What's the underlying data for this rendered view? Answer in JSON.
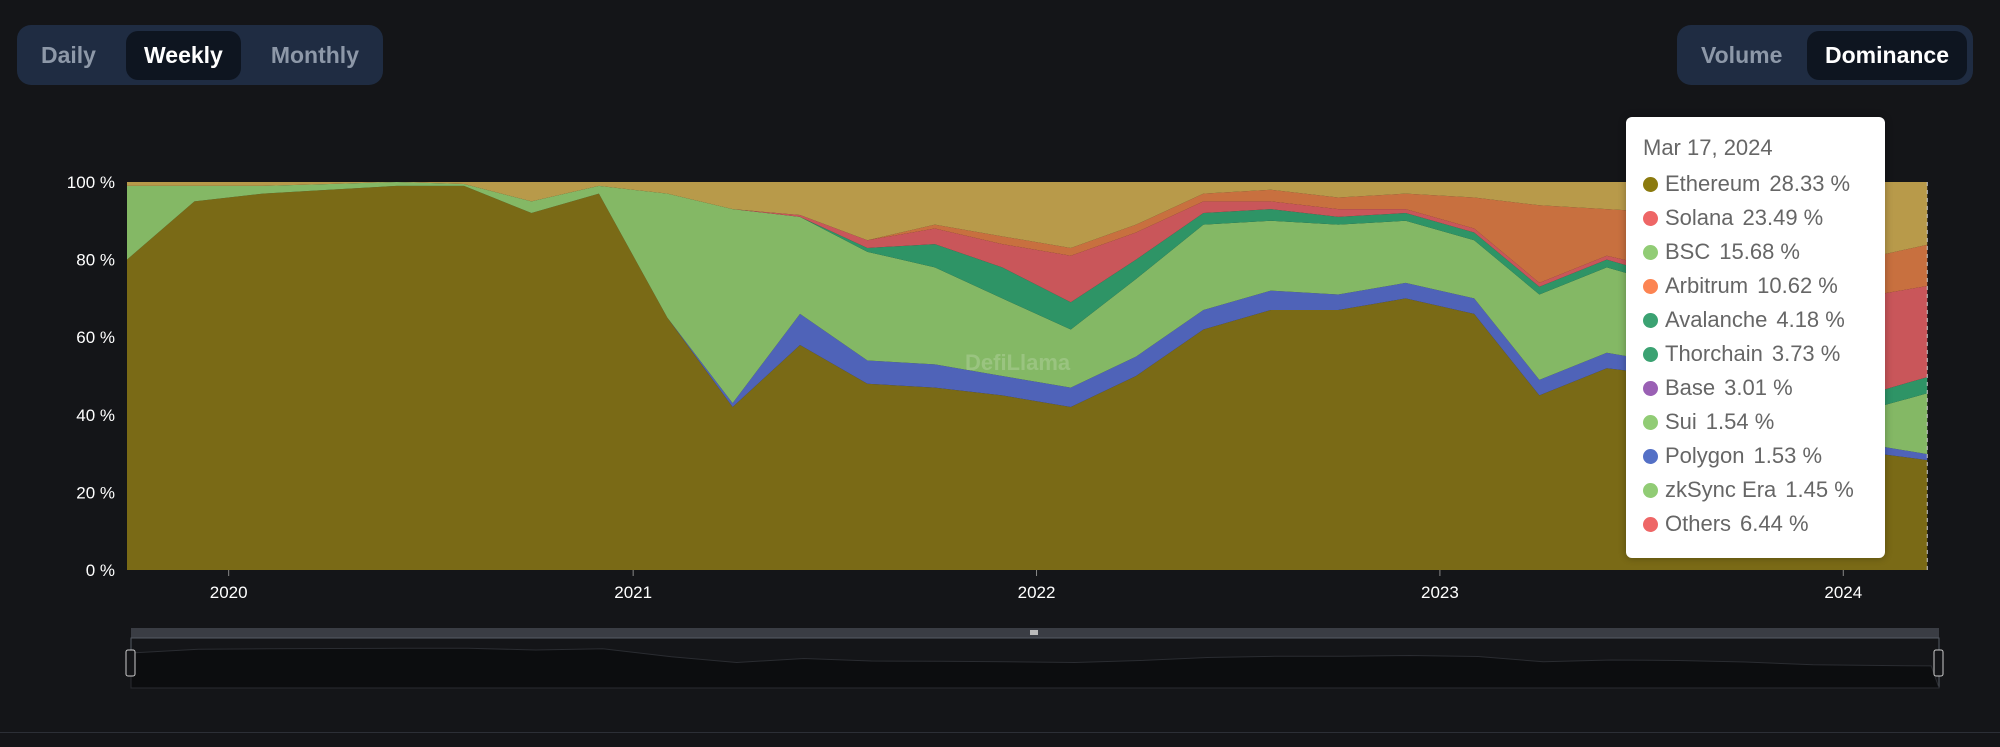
{
  "interval_toggle": {
    "options": [
      "Daily",
      "Weekly",
      "Monthly"
    ],
    "selected": "Weekly"
  },
  "mode_toggle": {
    "options": [
      "Volume",
      "Dominance"
    ],
    "selected": "Dominance"
  },
  "watermark": "DefiLlama",
  "tooltip": {
    "date": "Mar 17, 2024",
    "items": [
      {
        "name": "Ethereum",
        "value": "28.33 %",
        "color": "#8b7a0e"
      },
      {
        "name": "Solana",
        "value": "23.49 %",
        "color": "#ee6666"
      },
      {
        "name": "BSC",
        "value": "15.68 %",
        "color": "#91cc75"
      },
      {
        "name": "Arbitrum",
        "value": "10.62 %",
        "color": "#fc8452"
      },
      {
        "name": "Avalanche",
        "value": "4.18 %",
        "color": "#3ba272"
      },
      {
        "name": "Thorchain",
        "value": "3.73 %",
        "color": "#3ba272"
      },
      {
        "name": "Base",
        "value": "3.01 %",
        "color": "#9a60b4"
      },
      {
        "name": "Sui",
        "value": "1.54 %",
        "color": "#91cc75"
      },
      {
        "name": "Polygon",
        "value": "1.53 %",
        "color": "#5470c6"
      },
      {
        "name": "zkSync Era",
        "value": "1.45 %",
        "color": "#91cc75"
      },
      {
        "name": "Others",
        "value": "6.44 %",
        "color": "#ee6666"
      }
    ]
  },
  "chart_data": {
    "type": "area",
    "stacked": true,
    "ylim": [
      0,
      100
    ],
    "yticks": [
      "0 %",
      "20 %",
      "40 %",
      "60 %",
      "80 %",
      "100 %"
    ],
    "xticks": [
      "2020",
      "2021",
      "2022",
      "2023",
      "2024"
    ],
    "xlim": [
      "2019-10-01",
      "2024-03-24"
    ],
    "hover_date": "2024-03-17",
    "x": [
      "2019-10-01",
      "2019-12-01",
      "2020-02-01",
      "2020-04-01",
      "2020-06-01",
      "2020-08-01",
      "2020-10-01",
      "2020-12-01",
      "2021-02-01",
      "2021-04-01",
      "2021-06-01",
      "2021-08-01",
      "2021-10-01",
      "2021-12-01",
      "2022-02-01",
      "2022-04-01",
      "2022-06-01",
      "2022-08-01",
      "2022-10-01",
      "2022-12-01",
      "2023-02-01",
      "2023-04-01",
      "2023-06-01",
      "2023-08-01",
      "2023-10-01",
      "2023-12-01",
      "2024-02-01",
      "2024-03-17"
    ],
    "series": [
      {
        "name": "Ethereum",
        "color": "#7a6a16",
        "values": [
          80,
          95,
          97,
          98,
          99,
          99,
          92,
          97,
          65,
          42,
          58,
          48,
          47,
          45,
          42,
          50,
          62,
          67,
          67,
          70,
          66,
          45,
          52,
          50,
          44,
          33,
          30,
          28.33
        ]
      },
      {
        "name": "Polygon",
        "color": "#4f63b8",
        "values": [
          0,
          0,
          0,
          0,
          0,
          0,
          0,
          0,
          0,
          1,
          8,
          6,
          6,
          5,
          5,
          5,
          5,
          5,
          4,
          4,
          4,
          4,
          4,
          3,
          3,
          2,
          2,
          1.53
        ]
      },
      {
        "name": "BSC",
        "color": "#84b865",
        "values": [
          19,
          4,
          2,
          1.5,
          1,
          0.5,
          3,
          2,
          32,
          50,
          25,
          28,
          25,
          20,
          15,
          20,
          22,
          18,
          18,
          16,
          15,
          22,
          22,
          20,
          22,
          17,
          10,
          15.68
        ]
      },
      {
        "name": "Avalanche",
        "color": "#2e9466",
        "values": [
          0,
          0,
          0,
          0,
          0,
          0,
          0,
          0,
          0,
          0,
          0,
          1,
          6,
          8,
          7,
          5,
          3,
          3,
          2,
          2,
          2,
          2,
          2,
          2,
          2,
          3,
          4,
          4.18
        ]
      },
      {
        "name": "Solana",
        "color": "#c9565a",
        "values": [
          0,
          0,
          0,
          0,
          0,
          0,
          0,
          0,
          0,
          0,
          0.5,
          2,
          4,
          6,
          12,
          7,
          3,
          2,
          2,
          1,
          1,
          1,
          1,
          2,
          4,
          15,
          25,
          23.49
        ]
      },
      {
        "name": "Arbitrum",
        "color": "#c8703f",
        "values": [
          0,
          0,
          0,
          0,
          0,
          0,
          0,
          0,
          0,
          0,
          0,
          0,
          1,
          2,
          2,
          2,
          2,
          3,
          3,
          4,
          8,
          20,
          12,
          15,
          16,
          15,
          10,
          10.62
        ]
      },
      {
        "name": "Others",
        "color": "#b89a4a",
        "values": [
          1,
          1,
          1,
          0.5,
          0,
          0.5,
          5,
          1,
          3,
          7,
          8.5,
          15,
          11,
          14,
          17,
          11,
          5,
          2,
          4,
          3,
          4,
          6,
          7,
          8,
          9,
          15,
          19,
          16.17
        ]
      }
    ]
  }
}
